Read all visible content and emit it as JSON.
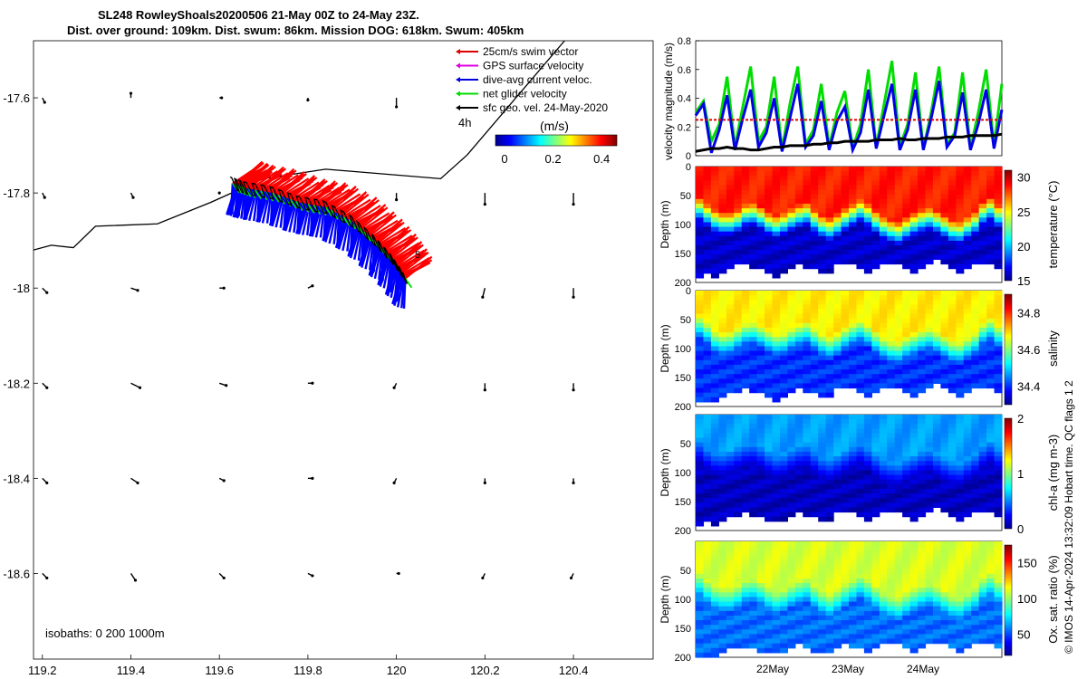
{
  "header": {
    "title_line1": "SL248 RowleyShoals20200506 21-May 00Z to 24-May 23Z.",
    "title_line2": "Dist. over ground: 109km. Dist. swum: 86km. Mission DOG: 618km. Swum: 405km"
  },
  "legend": {
    "items": [
      {
        "label": "25cm/s swim vector",
        "color": "#e00000"
      },
      {
        "label": "GPS surface velocity",
        "color": "#e000e0"
      },
      {
        "label": "dive-avg current veloc.",
        "color": "#0000e6"
      },
      {
        "label": "net glider velocity",
        "color": "#00dd00"
      },
      {
        "label": "sfc geo. vel. 24-May-2020",
        "color": "#000000"
      }
    ],
    "time_label": "4h",
    "colorbar_title": "(m/s)",
    "colorbar_ticks": [
      "0",
      "0.2",
      "0.4"
    ]
  },
  "map": {
    "isobaths_label": "isobaths: 0   200  1000m",
    "end_marker": "5",
    "colors": {
      "track": "#ff0000",
      "current": "#0000ff",
      "net": "#00e000",
      "line": "#000000"
    }
  },
  "side": {
    "copyright": "© IMOS 14-Apr-2024 13:32:09 Hobart time. QC flags 1  2"
  },
  "chart_data": [
    {
      "type": "scatter",
      "title": "Glider track map",
      "xlabel": "",
      "ylabel": "",
      "xlim": [
        119.18,
        120.58
      ],
      "ylim": [
        -18.78,
        -17.48
      ],
      "x_ticks": [
        "119.2",
        "119.4",
        "119.6",
        "119.8",
        "120",
        "120.2",
        "120.4"
      ],
      "y_ticks": [
        "-17.6",
        "-17.8",
        "-18",
        "-18.2",
        "-18.4",
        "-18.6"
      ],
      "track": [
        [
          119.63,
          -17.78
        ],
        [
          119.66,
          -17.79
        ],
        [
          119.72,
          -17.8
        ],
        [
          119.78,
          -17.82
        ],
        [
          119.84,
          -17.83
        ],
        [
          119.9,
          -17.86
        ],
        [
          119.95,
          -17.9
        ],
        [
          119.99,
          -17.94
        ],
        [
          120.02,
          -17.98
        ]
      ],
      "coastline": [
        [
          119.18,
          -17.92
        ],
        [
          119.22,
          -17.91
        ],
        [
          119.27,
          -17.915
        ],
        [
          119.32,
          -17.87
        ],
        [
          119.46,
          -17.865
        ],
        [
          119.58,
          -17.82
        ],
        [
          119.7,
          -17.77
        ],
        [
          119.84,
          -17.75
        ],
        [
          120.1,
          -17.77
        ],
        [
          120.16,
          -17.72
        ],
        [
          120.38,
          -17.48
        ]
      ],
      "geo_vectors": [
        {
          "x": 119.2,
          "y": -17.6,
          "u": 0.01,
          "v": -0.02
        },
        {
          "x": 119.4,
          "y": -17.6,
          "u": 0.0,
          "v": 0.02
        },
        {
          "x": 119.6,
          "y": -17.6,
          "u": 0.01,
          "v": 0.0
        },
        {
          "x": 119.8,
          "y": -17.6,
          "u": 0.0,
          "v": -0.01
        },
        {
          "x": 120.0,
          "y": -17.6,
          "u": 0.0,
          "v": -0.04
        },
        {
          "x": 119.2,
          "y": -17.8,
          "u": 0.01,
          "v": -0.02
        },
        {
          "x": 119.4,
          "y": -17.8,
          "u": 0.01,
          "v": -0.02
        },
        {
          "x": 119.6,
          "y": -17.8,
          "u": 0.0,
          "v": 0.0
        },
        {
          "x": 120.0,
          "y": -17.8,
          "u": 0.0,
          "v": -0.03
        },
        {
          "x": 120.2,
          "y": -17.8,
          "u": 0.0,
          "v": -0.05
        },
        {
          "x": 120.4,
          "y": -17.8,
          "u": 0.0,
          "v": -0.05
        },
        {
          "x": 119.2,
          "y": -18.0,
          "u": 0.02,
          "v": -0.02
        },
        {
          "x": 119.4,
          "y": -18.0,
          "u": 0.03,
          "v": -0.01
        },
        {
          "x": 119.6,
          "y": -18.0,
          "u": 0.02,
          "v": 0.0
        },
        {
          "x": 119.8,
          "y": -18.0,
          "u": 0.02,
          "v": 0.01
        },
        {
          "x": 120.0,
          "y": -18.0,
          "u": 0.01,
          "v": 0.03
        },
        {
          "x": 120.2,
          "y": -18.0,
          "u": -0.01,
          "v": -0.04
        },
        {
          "x": 120.4,
          "y": -18.0,
          "u": 0.0,
          "v": -0.04
        },
        {
          "x": 119.2,
          "y": -18.2,
          "u": 0.02,
          "v": -0.02
        },
        {
          "x": 119.4,
          "y": -18.2,
          "u": 0.04,
          "v": -0.02
        },
        {
          "x": 119.6,
          "y": -18.2,
          "u": 0.03,
          "v": -0.01
        },
        {
          "x": 119.8,
          "y": -18.2,
          "u": 0.02,
          "v": 0.0
        },
        {
          "x": 120.0,
          "y": -18.2,
          "u": -0.01,
          "v": -0.02
        },
        {
          "x": 120.2,
          "y": -18.2,
          "u": 0.0,
          "v": -0.03
        },
        {
          "x": 120.4,
          "y": -18.2,
          "u": 0.0,
          "v": -0.03
        },
        {
          "x": 119.2,
          "y": -18.4,
          "u": 0.02,
          "v": -0.02
        },
        {
          "x": 119.4,
          "y": -18.4,
          "u": 0.03,
          "v": -0.02
        },
        {
          "x": 119.6,
          "y": -18.4,
          "u": 0.02,
          "v": -0.01
        },
        {
          "x": 119.8,
          "y": -18.4,
          "u": 0.02,
          "v": 0.0
        },
        {
          "x": 120.0,
          "y": -18.4,
          "u": -0.01,
          "v": -0.02
        },
        {
          "x": 120.2,
          "y": -18.4,
          "u": 0.0,
          "v": -0.02
        },
        {
          "x": 120.4,
          "y": -18.4,
          "u": 0.0,
          "v": -0.02
        },
        {
          "x": 119.2,
          "y": -18.6,
          "u": 0.02,
          "v": -0.02
        },
        {
          "x": 119.4,
          "y": -18.6,
          "u": 0.02,
          "v": -0.03
        },
        {
          "x": 119.6,
          "y": -18.6,
          "u": 0.02,
          "v": -0.02
        },
        {
          "x": 119.8,
          "y": -18.6,
          "u": 0.02,
          "v": -0.01
        },
        {
          "x": 120.0,
          "y": -18.6,
          "u": 0.01,
          "v": 0.0
        },
        {
          "x": 120.2,
          "y": -18.6,
          "u": -0.01,
          "v": -0.02
        },
        {
          "x": 120.4,
          "y": -18.6,
          "u": -0.01,
          "v": -0.02
        }
      ]
    },
    {
      "type": "line",
      "title": "",
      "ylabel": "velocity magnitude (m/s)",
      "xlim": [
        0,
        4
      ],
      "ylim": [
        0,
        0.8
      ],
      "y_ticks": [
        "0",
        "0.2",
        "0.4",
        "0.6",
        "0.8"
      ],
      "series": [
        {
          "name": "net glider velocity",
          "color": "#00dd00",
          "values": [
            0.3,
            0.38,
            0.1,
            0.22,
            0.55,
            0.06,
            0.34,
            0.62,
            0.1,
            0.2,
            0.55,
            0.04,
            0.36,
            0.62,
            0.08,
            0.18,
            0.5,
            0.06,
            0.3,
            0.45,
            0.05,
            0.22,
            0.6,
            0.06,
            0.36,
            0.66,
            0.06,
            0.22,
            0.58,
            0.05,
            0.3,
            0.62,
            0.08,
            0.16,
            0.58,
            0.05,
            0.3,
            0.6,
            0.07,
            0.5
          ]
        },
        {
          "name": "dive-avg current veloc.",
          "color": "#0000e6",
          "values": [
            0.28,
            0.36,
            0.02,
            0.18,
            0.42,
            0.04,
            0.26,
            0.46,
            0.06,
            0.16,
            0.4,
            0.03,
            0.26,
            0.5,
            0.06,
            0.14,
            0.38,
            0.04,
            0.24,
            0.34,
            0.04,
            0.16,
            0.46,
            0.05,
            0.28,
            0.5,
            0.04,
            0.18,
            0.46,
            0.04,
            0.26,
            0.52,
            0.06,
            0.14,
            0.44,
            0.04,
            0.22,
            0.46,
            0.05,
            0.32
          ]
        },
        {
          "name": "swim speed",
          "color": "#e00000",
          "values": [
            0.25,
            0.25,
            0.25,
            0.25,
            0.25,
            0.25,
            0.25,
            0.25,
            0.25,
            0.25,
            0.25,
            0.25,
            0.25,
            0.25,
            0.25,
            0.25,
            0.25,
            0.25,
            0.25,
            0.25,
            0.25,
            0.25,
            0.25,
            0.25,
            0.25,
            0.25,
            0.25,
            0.25,
            0.25,
            0.25,
            0.25,
            0.25,
            0.25,
            0.25,
            0.25,
            0.25,
            0.25,
            0.25,
            0.25,
            0.25
          ]
        },
        {
          "name": "sfc geo. vel.",
          "color": "#000000",
          "values": [
            0.03,
            0.04,
            0.05,
            0.05,
            0.06,
            0.05,
            0.05,
            0.04,
            0.04,
            0.05,
            0.06,
            0.06,
            0.07,
            0.07,
            0.07,
            0.08,
            0.08,
            0.09,
            0.09,
            0.1,
            0.1,
            0.1,
            0.1,
            0.11,
            0.11,
            0.11,
            0.12,
            0.11,
            0.11,
            0.12,
            0.12,
            0.12,
            0.13,
            0.13,
            0.13,
            0.14,
            0.14,
            0.14,
            0.14,
            0.15
          ]
        }
      ]
    },
    {
      "type": "heatmap",
      "ylabel": "Depth (m)",
      "clabel": "temperature (°C)",
      "ylim": [
        200,
        0
      ],
      "y_ticks": [
        "0",
        "50",
        "100",
        "150",
        "200"
      ],
      "c_ticks": [
        "15",
        "20",
        "25",
        "30"
      ],
      "crange": [
        15,
        31
      ],
      "max_depth": [
        185,
        182,
        185,
        178,
        172,
        168,
        165,
        170,
        175,
        182,
        185,
        178,
        170,
        165,
        170,
        176,
        182,
        178,
        168,
        162,
        168,
        175,
        180,
        176,
        168,
        162,
        168,
        176,
        180,
        174,
        166,
        160,
        165,
        172,
        178,
        174,
        166,
        162,
        168,
        176
      ],
      "mld": [
        70,
        80,
        90,
        95,
        95,
        90,
        80,
        78,
        85,
        95,
        100,
        95,
        88,
        82,
        78,
        90,
        100,
        105,
        98,
        88,
        80,
        72,
        80,
        92,
        102,
        108,
        112,
        104,
        96,
        90,
        86,
        92,
        100,
        108,
        110,
        102,
        94,
        78,
        70,
        82
      ],
      "surface_value": 28.5,
      "bottom_value": 16
    },
    {
      "type": "heatmap",
      "ylabel": "Depth (m)",
      "clabel": "salinity",
      "ylim": [
        200,
        0
      ],
      "y_ticks": [
        "0",
        "50",
        "100",
        "150",
        "200"
      ],
      "c_ticks": [
        "34.4",
        "34.6",
        "34.8"
      ],
      "crange": [
        34.3,
        34.9
      ],
      "max_depth": [
        190,
        186,
        188,
        180,
        174,
        170,
        168,
        172,
        176,
        184,
        186,
        180,
        172,
        166,
        170,
        176,
        182,
        178,
        168,
        162,
        168,
        175,
        180,
        176,
        168,
        162,
        168,
        176,
        180,
        174,
        166,
        160,
        165,
        172,
        178,
        174,
        166,
        162,
        168,
        176
      ],
      "mld": [
        60,
        70,
        85,
        90,
        88,
        80,
        72,
        70,
        76,
        84,
        90,
        88,
        80,
        74,
        70,
        80,
        90,
        96,
        90,
        80,
        72,
        66,
        74,
        86,
        96,
        102,
        104,
        96,
        90,
        84,
        80,
        86,
        94,
        102,
        104,
        96,
        88,
        72,
        64,
        76
      ],
      "surface_value": 34.68,
      "bottom_value": 34.4
    },
    {
      "type": "heatmap",
      "ylabel": "Depth (m)",
      "clabel": "chl-a (mg m-3)",
      "ylim": [
        200,
        0
      ],
      "y_ticks": [
        "50",
        "100",
        "150",
        "200"
      ],
      "c_ticks": [
        "0",
        "1",
        "2"
      ],
      "crange": [
        0,
        2
      ],
      "max_depth": [
        188,
        184,
        186,
        180,
        174,
        170,
        168,
        172,
        176,
        182,
        184,
        178,
        170,
        165,
        170,
        176,
        182,
        178,
        168,
        162,
        168,
        175,
        180,
        176,
        168,
        162,
        168,
        176,
        180,
        174,
        166,
        160,
        165,
        172,
        178,
        174,
        166,
        162,
        168,
        176
      ],
      "mld": [
        60,
        72,
        80,
        82,
        78,
        72,
        66,
        64,
        70,
        80,
        86,
        84,
        76,
        70,
        68,
        78,
        88,
        92,
        86,
        78,
        70,
        64,
        72,
        84,
        94,
        98,
        100,
        92,
        86,
        80,
        76,
        84,
        92,
        98,
        100,
        92,
        84,
        70,
        62,
        74
      ],
      "surface_value": 0.55,
      "bottom_value": 0.1
    },
    {
      "type": "heatmap",
      "ylabel": "Depth (m)",
      "clabel": "Ox. sat. ratio (%)",
      "ylim": [
        200,
        0
      ],
      "y_ticks": [
        "50",
        "100",
        "150",
        "200"
      ],
      "c_ticks": [
        "50",
        "100",
        "150"
      ],
      "crange": [
        20,
        175
      ],
      "max_depth": [
        196,
        194,
        195,
        190,
        184,
        180,
        178,
        182,
        186,
        190,
        192,
        188,
        180,
        176,
        180,
        186,
        190,
        188,
        178,
        172,
        178,
        184,
        188,
        184,
        176,
        172,
        176,
        184,
        188,
        182,
        176,
        170,
        174,
        180,
        186,
        182,
        176,
        172,
        176,
        184
      ],
      "mld": [
        72,
        84,
        94,
        98,
        98,
        92,
        82,
        80,
        86,
        96,
        102,
        98,
        90,
        84,
        80,
        92,
        102,
        108,
        100,
        90,
        82,
        74,
        82,
        94,
        104,
        110,
        114,
        106,
        98,
        92,
        88,
        94,
        102,
        110,
        112,
        104,
        96,
        80,
        72,
        84
      ],
      "surface_value": 110,
      "bottom_value": 55
    }
  ],
  "time_axis": {
    "ticks": [
      "22May",
      "23May",
      "24May"
    ]
  }
}
